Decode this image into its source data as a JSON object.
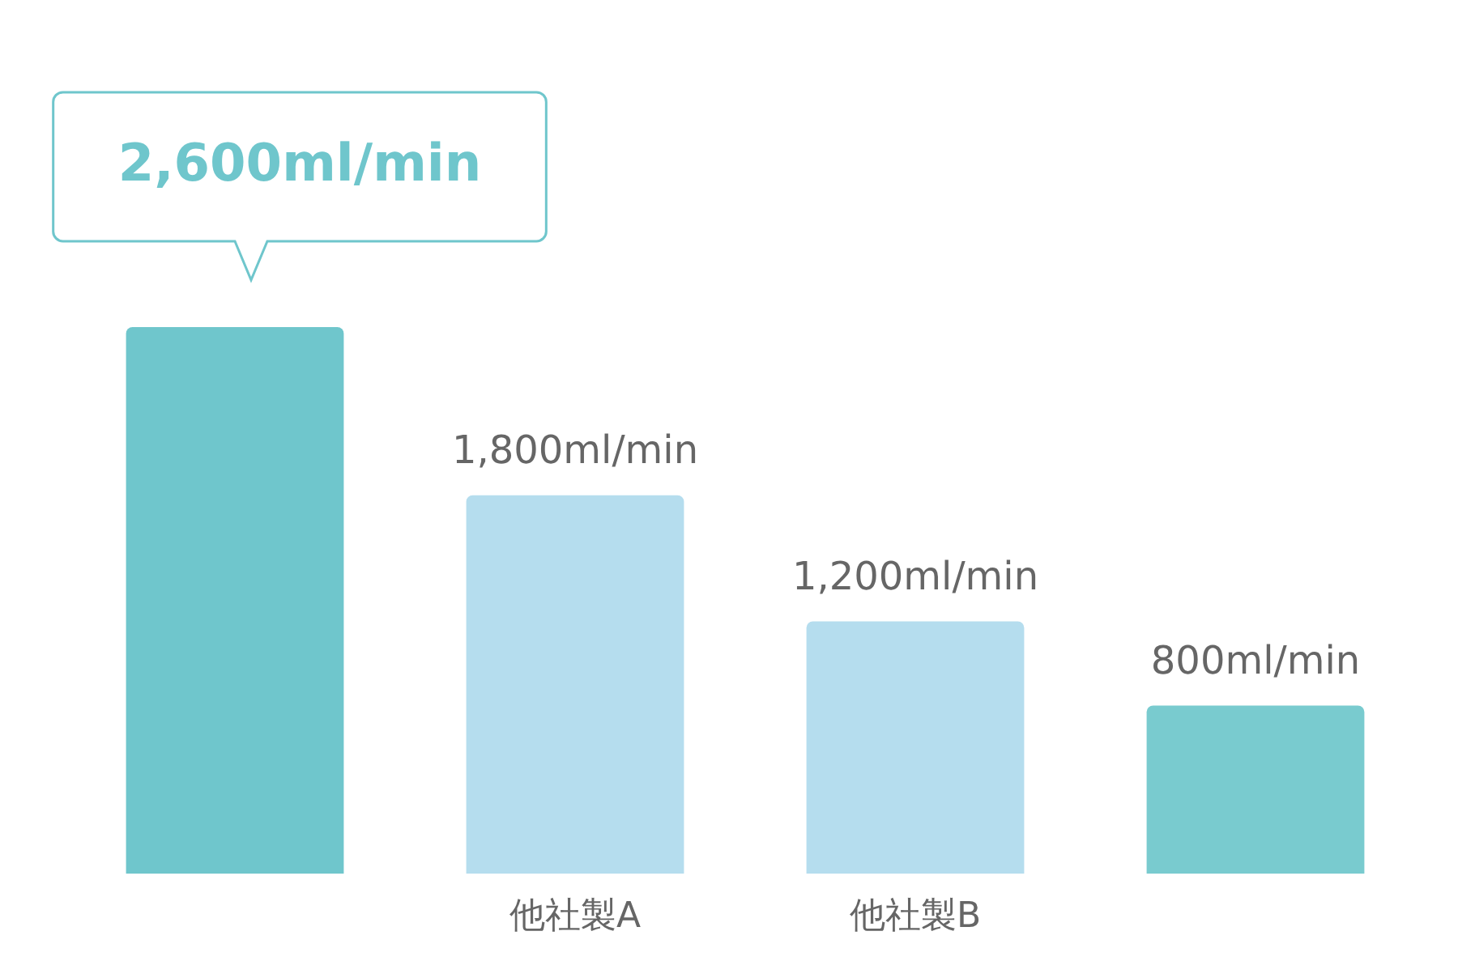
{
  "chart_data": {
    "type": "bar",
    "categories": [
      null,
      "他社製A",
      "他社製B",
      null
    ],
    "values": [
      2600,
      1800,
      1200,
      800
    ],
    "colors": [
      "#6fc6cc",
      "#b5ddee",
      "#b5ddee",
      "#79cbcf"
    ],
    "value_labels": [
      "2,600ml/min",
      "1,800ml/min",
      "1,200ml/min",
      "800ml/min"
    ],
    "grid": false,
    "legend": false
  }
}
